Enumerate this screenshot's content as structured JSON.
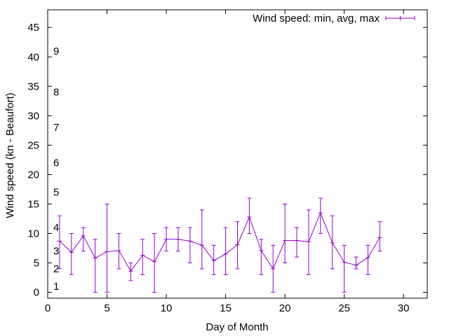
{
  "chart_data": {
    "type": "line",
    "xlabel": "Day of Month",
    "ylabel": "Wind speed (kn - Beaufort)",
    "xlim": [
      0,
      32
    ],
    "ylim": [
      -1,
      48
    ],
    "x_ticks": [
      0,
      5,
      10,
      15,
      20,
      25,
      30
    ],
    "y_ticks": [
      0,
      5,
      10,
      15,
      20,
      25,
      30,
      35,
      40,
      45
    ],
    "grid": false,
    "legend": {
      "position": "top-right",
      "entries": [
        "Wind speed: min, avg, max"
      ]
    },
    "colors": {
      "series": "#9400d3",
      "axis": "#000000"
    },
    "beaufort_labels": [
      {
        "label": "1",
        "y": 1
      },
      {
        "label": "2",
        "y": 4
      },
      {
        "label": "3",
        "y": 7
      },
      {
        "label": "4",
        "y": 11
      },
      {
        "label": "5",
        "y": 17
      },
      {
        "label": "6",
        "y": 22
      },
      {
        "label": "7",
        "y": 28
      },
      {
        "label": "8",
        "y": 34
      },
      {
        "label": "9",
        "y": 41
      }
    ],
    "series": [
      {
        "name": "Wind speed: min, avg, max",
        "x": [
          1,
          2,
          3,
          4,
          5,
          6,
          7,
          8,
          9,
          10,
          11,
          12,
          13,
          14,
          15,
          16,
          17,
          18,
          19,
          20,
          21,
          22,
          23,
          24,
          25,
          26,
          27,
          28
        ],
        "avg": [
          8.7,
          6.8,
          9.6,
          5.8,
          6.9,
          7.1,
          3.6,
          6.3,
          5.2,
          9.0,
          9.0,
          8.7,
          8.0,
          5.4,
          6.5,
          8.1,
          12.8,
          7.1,
          4.0,
          8.8,
          8.8,
          8.6,
          13.5,
          8.4,
          5.1,
          4.6,
          5.9,
          9.3
        ],
        "min": [
          4,
          3,
          7,
          0,
          0,
          4,
          2,
          3,
          0,
          7,
          7,
          5,
          4,
          3,
          3,
          4,
          10,
          3,
          0,
          5,
          6,
          3,
          10,
          4,
          0,
          4,
          3,
          7
        ],
        "max": [
          13,
          10,
          11,
          9,
          15,
          10,
          5,
          9,
          10,
          11,
          11,
          11,
          14,
          8,
          11,
          12,
          16,
          9,
          8,
          15,
          11,
          14,
          16,
          13,
          8,
          6,
          8,
          12
        ]
      }
    ]
  }
}
